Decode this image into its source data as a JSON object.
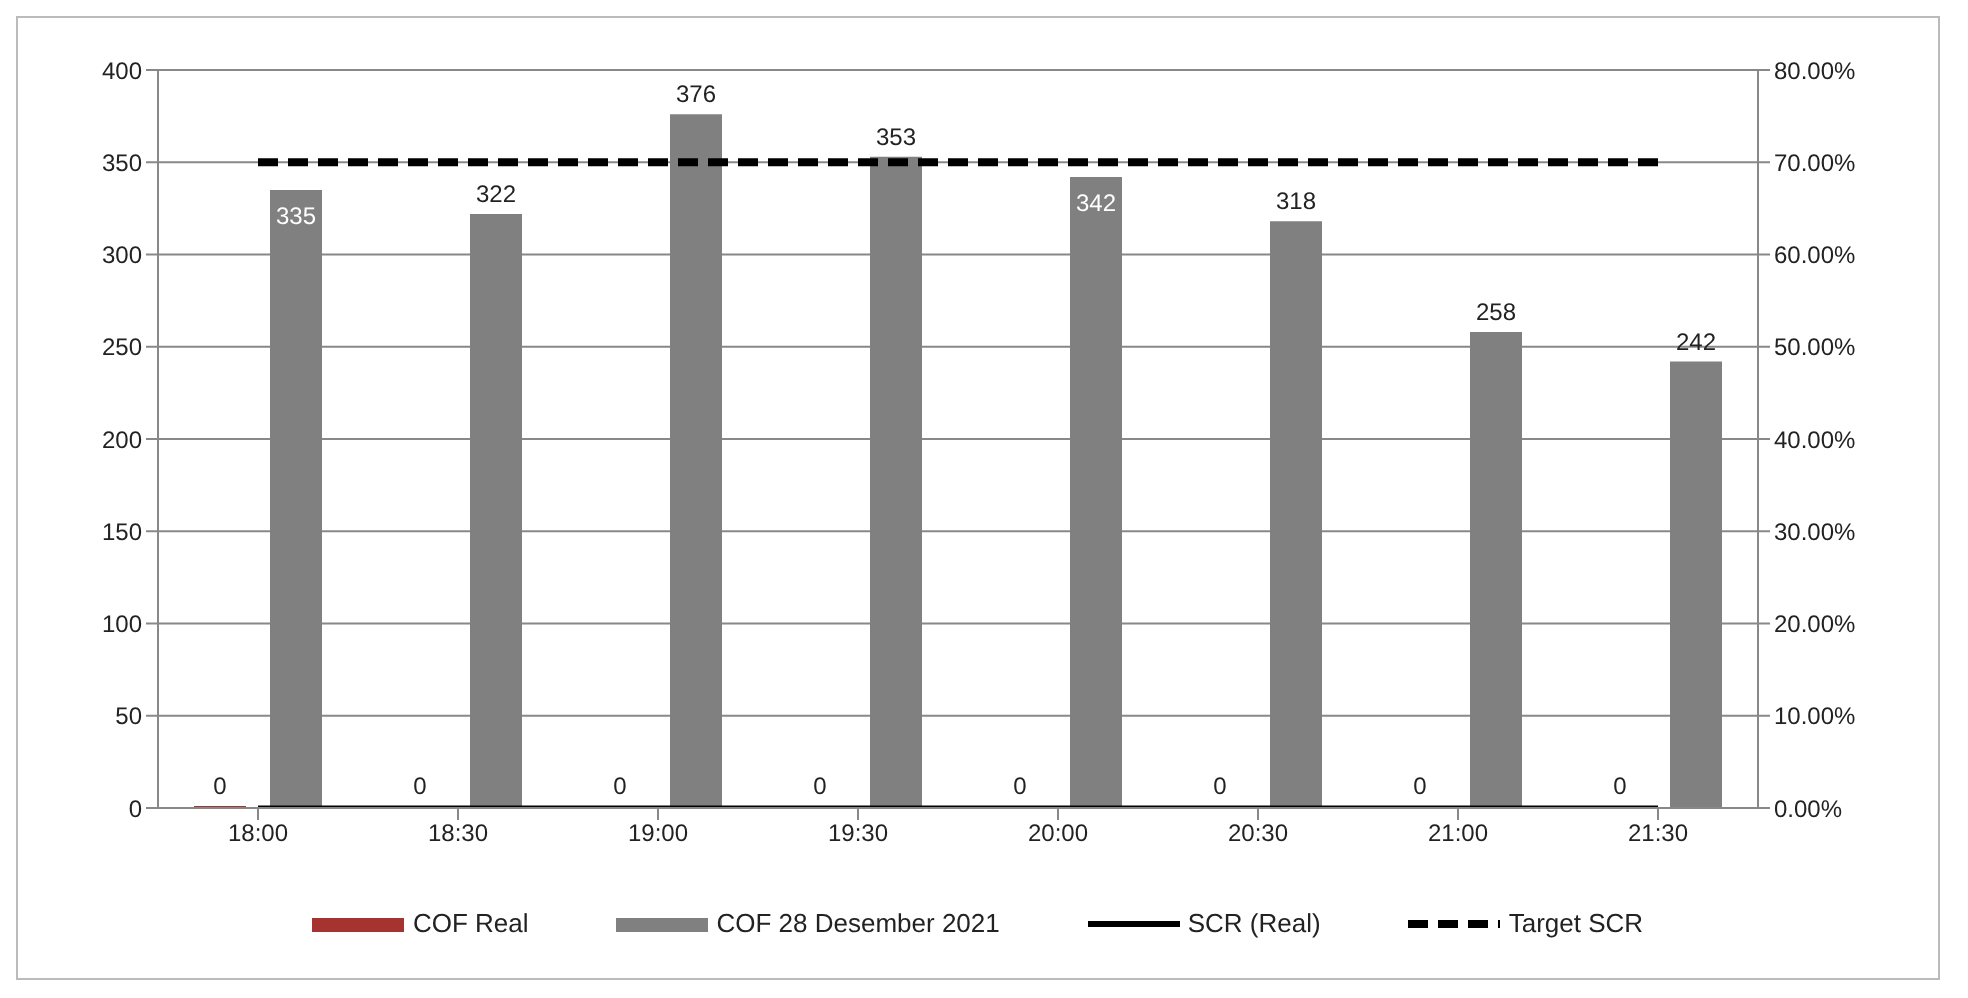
{
  "chart_data": {
    "type": "bar",
    "categories": [
      "18:00",
      "18:30",
      "19:00",
      "19:30",
      "20:00",
      "20:30",
      "21:00",
      "21:30"
    ],
    "series": [
      {
        "name": "COF Real",
        "color": "#a5332f",
        "values": [
          0,
          0,
          0,
          0,
          0,
          0,
          0,
          0
        ],
        "value_labels": [
          "0",
          "0",
          "0",
          "0",
          "0",
          "0",
          "0",
          "0"
        ]
      },
      {
        "name": "COF 28 Desember 2021",
        "color": "#808080",
        "values": [
          335,
          322,
          376,
          353,
          342,
          318,
          258,
          242
        ],
        "value_labels": [
          "335",
          "322",
          "376",
          "353",
          "342",
          "318",
          "258",
          "242"
        ]
      },
      {
        "name": "SCR (Real)",
        "type": "line",
        "axis": "y2",
        "color": "#000000",
        "line_style": "solid",
        "values": [
          0,
          0,
          0,
          0,
          0,
          0,
          0,
          0
        ]
      },
      {
        "name": "Target SCR",
        "type": "line",
        "axis": "y2",
        "color": "#000000",
        "line_style": "dashed",
        "values": [
          70,
          70,
          70,
          70,
          70,
          70,
          70,
          70
        ]
      }
    ],
    "ylim": [
      0,
      400
    ],
    "yticks": [
      0,
      50,
      100,
      150,
      200,
      250,
      300,
      350,
      400
    ],
    "y2lim": [
      0,
      80
    ],
    "y2ticks": [
      {
        "value": 0,
        "label": "0.00%"
      },
      {
        "value": 10,
        "label": "10.00%"
      },
      {
        "value": 20,
        "label": "20.00%"
      },
      {
        "value": 30,
        "label": "30.00%"
      },
      {
        "value": 40,
        "label": "40.00%"
      },
      {
        "value": 50,
        "label": "50.00%"
      },
      {
        "value": 60,
        "label": "60.00%"
      },
      {
        "value": 70,
        "label": "70.00%"
      },
      {
        "value": 80,
        "label": "80.00%"
      }
    ],
    "grid": "y",
    "legend": "bottom",
    "marker": "none"
  }
}
